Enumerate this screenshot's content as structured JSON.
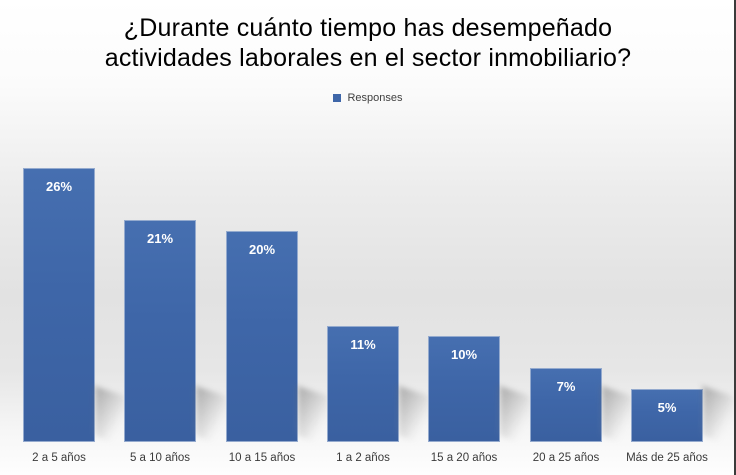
{
  "title": {
    "line1": "¿Durante cuánto tiempo has desempeñado",
    "line2": "actividades laborales en el sector inmobiliario?"
  },
  "legend": {
    "label": "Responses",
    "swatch_color": "#3e66a8"
  },
  "colors": {
    "bar_fill": "#3e66a8",
    "bar_border": "#94aace",
    "bar_value_text": "#ffffff",
    "title_text": "#000000",
    "category_text": "#3a3a3a",
    "right_edge_line": "#3b3b3b",
    "background_gray": "#e2e2e2"
  },
  "chart_data": {
    "type": "bar",
    "title": "¿Durante cuánto tiempo has desempeñado actividades laborales en el sector inmobiliario?",
    "series_name": "Responses",
    "categories": [
      "2 a 5 años",
      "5 a 10 años",
      "10 a 15 años",
      "1 a 2 años",
      "15 a 20 años",
      "20 a 25 años",
      "Más de 25 años"
    ],
    "values": [
      26,
      21,
      20,
      11,
      10,
      7,
      5
    ],
    "labels": [
      "26%",
      "21%",
      "20%",
      "11%",
      "10%",
      "7%",
      "5%"
    ],
    "unit": "percent",
    "xlabel": "",
    "ylabel": "",
    "ylim": [
      0,
      30
    ],
    "grid": false,
    "y_axis_visible": false,
    "legend_position": "top",
    "data_label_position": "inside-end"
  }
}
